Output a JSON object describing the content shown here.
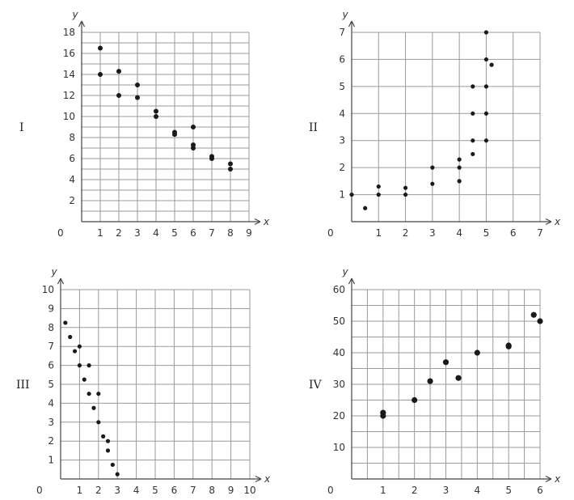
{
  "chart_data": [
    {
      "type": "scatter",
      "panel_label": "I",
      "xlabel": "x",
      "ylabel": "y",
      "xlim": [
        0,
        9
      ],
      "ylim": [
        0,
        18
      ],
      "x_ticks": [
        "1",
        "2",
        "3",
        "4",
        "5",
        "6",
        "7",
        "8",
        "9"
      ],
      "y_ticks": [
        "2",
        "4",
        "6",
        "8",
        "10",
        "12",
        "14",
        "16",
        "18"
      ],
      "origin_label": "0",
      "grid": true,
      "points": [
        [
          1,
          16.5
        ],
        [
          1,
          14
        ],
        [
          2,
          14.3
        ],
        [
          2,
          12
        ],
        [
          3,
          13
        ],
        [
          3,
          11.8
        ],
        [
          4,
          10.5
        ],
        [
          4,
          10
        ],
        [
          5,
          8.5
        ],
        [
          5,
          8.3
        ],
        [
          6,
          9
        ],
        [
          6,
          7.3
        ],
        [
          6,
          7
        ],
        [
          7,
          6.2
        ],
        [
          7,
          6
        ],
        [
          8,
          5.5
        ],
        [
          8,
          5
        ]
      ]
    },
    {
      "type": "scatter",
      "panel_label": "II",
      "xlabel": "x",
      "ylabel": "y",
      "xlim": [
        0,
        7
      ],
      "ylim": [
        0,
        7
      ],
      "x_ticks": [
        "1",
        "2",
        "3",
        "4",
        "5",
        "6",
        "7"
      ],
      "y_ticks": [
        "1",
        "2",
        "3",
        "4",
        "5",
        "6",
        "7"
      ],
      "origin_label": "0",
      "grid": true,
      "points": [
        [
          0,
          1
        ],
        [
          0.5,
          0.5
        ],
        [
          1,
          1.3
        ],
        [
          1,
          1
        ],
        [
          2,
          1.25
        ],
        [
          2,
          1
        ],
        [
          3,
          2
        ],
        [
          3,
          1.4
        ],
        [
          4,
          2.3
        ],
        [
          4,
          2
        ],
        [
          4,
          1.5
        ],
        [
          4.5,
          5
        ],
        [
          4.5,
          4
        ],
        [
          4.5,
          3
        ],
        [
          4.5,
          2.5
        ],
        [
          5,
          7
        ],
        [
          5,
          6
        ],
        [
          5,
          5
        ],
        [
          5,
          4
        ],
        [
          5,
          3
        ],
        [
          5.2,
          5.8
        ]
      ]
    },
    {
      "type": "scatter",
      "panel_label": "III",
      "xlabel": "x",
      "ylabel": "y",
      "xlim": [
        0,
        10
      ],
      "ylim": [
        0,
        10
      ],
      "x_ticks": [
        "1",
        "2",
        "3",
        "4",
        "5",
        "6",
        "7",
        "8",
        "9",
        "10"
      ],
      "y_ticks": [
        "1",
        "2",
        "3",
        "4",
        "5",
        "6",
        "7",
        "8",
        "9",
        "10"
      ],
      "origin_label": "0",
      "grid": true,
      "points": [
        [
          0.25,
          8.25
        ],
        [
          0.5,
          7.5
        ],
        [
          0.75,
          6.75
        ],
        [
          1,
          7
        ],
        [
          1,
          6
        ],
        [
          1.25,
          5.25
        ],
        [
          1.5,
          6
        ],
        [
          1.5,
          4.5
        ],
        [
          1.75,
          3.75
        ],
        [
          2,
          4.5
        ],
        [
          2,
          3
        ],
        [
          2.25,
          2.25
        ],
        [
          2.5,
          2
        ],
        [
          2.5,
          1.5
        ],
        [
          2.75,
          0.75
        ],
        [
          3,
          0.25
        ]
      ]
    },
    {
      "type": "scatter",
      "panel_label": "IV",
      "xlabel": "x",
      "ylabel": "y",
      "xlim": [
        0,
        6
      ],
      "ylim": [
        0,
        60
      ],
      "x_ticks": [
        "1",
        "2",
        "3",
        "4",
        "5",
        "6"
      ],
      "y_ticks": [
        "10",
        "20",
        "30",
        "40",
        "50",
        "60"
      ],
      "origin_label": "0",
      "grid": true,
      "points": [
        [
          1,
          21
        ],
        [
          1,
          20
        ],
        [
          2,
          25
        ],
        [
          2.5,
          31
        ],
        [
          3,
          37
        ],
        [
          3.4,
          32
        ],
        [
          4,
          40
        ],
        [
          5,
          42.3
        ],
        [
          5,
          42
        ],
        [
          5.8,
          52
        ],
        [
          6,
          50
        ]
      ]
    }
  ]
}
